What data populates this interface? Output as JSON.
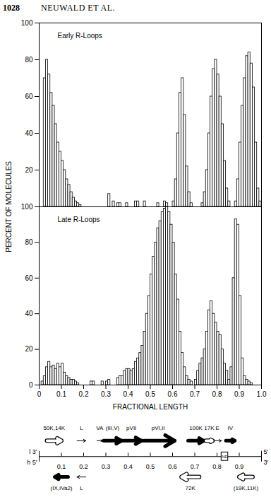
{
  "page": {
    "number": "1028",
    "running_head": "NEUWALD ET AL."
  },
  "chart_data": [
    {
      "type": "histogram",
      "title": "Early R-Loops",
      "ylabel": "PERCENT OF MOLECULES",
      "color": "#000000",
      "bins": [
        0,
        0.01,
        0.02,
        0.03,
        0.04,
        0.05,
        0.06,
        0.07,
        0.08,
        0.09,
        0.1,
        0.11,
        0.12,
        0.13,
        0.14,
        0.15,
        0.16,
        0.17,
        0.18,
        0.19,
        0.2,
        0.21,
        0.22,
        0.23,
        0.24,
        0.25,
        0.26,
        0.27,
        0.28,
        0.29,
        0.3,
        0.31,
        0.32,
        0.33,
        0.34,
        0.35,
        0.36,
        0.37,
        0.38,
        0.39,
        0.4,
        0.41,
        0.42,
        0.43,
        0.44,
        0.45,
        0.46,
        0.47,
        0.48,
        0.49,
        0.5,
        0.51,
        0.52,
        0.53,
        0.54,
        0.55,
        0.56,
        0.57,
        0.58,
        0.59,
        0.6,
        0.61,
        0.62,
        0.63,
        0.64,
        0.65,
        0.66,
        0.67,
        0.68,
        0.69,
        0.7,
        0.71,
        0.72,
        0.73,
        0.74,
        0.75,
        0.76,
        0.77,
        0.78,
        0.79,
        0.8,
        0.81,
        0.82,
        0.83,
        0.84,
        0.85,
        0.86,
        0.87,
        0.88,
        0.89,
        0.9,
        0.91,
        0.92,
        0.93,
        0.94,
        0.95,
        0.96,
        0.97,
        0.98,
        0.99,
        1
      ],
      "counts": [
        0,
        0,
        70,
        80,
        72,
        62,
        55,
        45,
        35,
        30,
        25,
        20,
        15,
        12,
        8,
        5,
        3,
        2,
        1,
        0,
        0,
        0,
        0,
        0,
        0,
        0,
        0,
        0,
        0,
        0,
        0,
        7,
        0,
        3,
        0,
        2,
        2,
        0,
        0,
        2,
        0,
        0,
        0,
        3,
        3,
        0,
        0,
        3,
        0,
        0,
        0,
        0,
        0,
        2,
        0,
        0,
        3,
        2,
        0,
        0,
        3,
        15,
        40,
        62,
        70,
        50,
        22,
        8,
        2,
        0,
        0,
        0,
        0,
        2,
        8,
        20,
        40,
        60,
        75,
        80,
        72,
        60,
        45,
        25,
        10,
        3,
        0,
        0,
        3,
        15,
        35,
        55,
        70,
        82,
        84,
        78,
        65,
        35,
        10,
        3
      ],
      "xlim": [
        0,
        1
      ],
      "ylim": [
        0,
        100
      ],
      "yticks": [
        20,
        40,
        60,
        80,
        100
      ],
      "tick_labels": "y"
    },
    {
      "type": "histogram",
      "title": "Late R-Loops",
      "xlabel": "FRACTIONAL LENGTH",
      "color": "#000000",
      "bins": [
        0,
        0.01,
        0.02,
        0.03,
        0.04,
        0.05,
        0.06,
        0.07,
        0.08,
        0.09,
        0.1,
        0.11,
        0.12,
        0.13,
        0.14,
        0.15,
        0.16,
        0.17,
        0.18,
        0.19,
        0.2,
        0.21,
        0.22,
        0.23,
        0.24,
        0.25,
        0.26,
        0.27,
        0.28,
        0.29,
        0.3,
        0.31,
        0.32,
        0.33,
        0.34,
        0.35,
        0.36,
        0.37,
        0.38,
        0.39,
        0.4,
        0.41,
        0.42,
        0.43,
        0.44,
        0.45,
        0.46,
        0.47,
        0.48,
        0.49,
        0.5,
        0.51,
        0.52,
        0.53,
        0.54,
        0.55,
        0.56,
        0.57,
        0.58,
        0.59,
        0.6,
        0.61,
        0.62,
        0.63,
        0.64,
        0.65,
        0.66,
        0.67,
        0.68,
        0.69,
        0.7,
        0.71,
        0.72,
        0.73,
        0.74,
        0.75,
        0.76,
        0.77,
        0.78,
        0.79,
        0.8,
        0.81,
        0.82,
        0.83,
        0.84,
        0.85,
        0.86,
        0.87,
        0.88,
        0.89,
        0.9,
        0.91,
        0.92,
        0.93,
        0.94,
        0.95,
        0.96,
        0.97,
        0.98,
        0.99,
        1
      ],
      "counts": [
        0,
        2,
        5,
        10,
        13,
        10,
        11,
        9,
        12,
        10,
        12,
        7,
        5,
        4,
        3,
        3,
        2,
        1,
        0,
        0,
        0,
        0,
        0,
        2,
        2,
        0,
        0,
        0,
        2,
        0,
        2,
        3,
        0,
        0,
        0,
        4,
        5,
        5,
        8,
        9,
        9,
        8,
        9,
        13,
        15,
        18,
        22,
        30,
        40,
        50,
        62,
        72,
        80,
        88,
        92,
        97,
        99,
        100,
        97,
        90,
        80,
        62,
        48,
        30,
        18,
        10,
        5,
        3,
        2,
        0,
        3,
        8,
        12,
        15,
        20,
        30,
        42,
        47,
        40,
        35,
        30,
        28,
        20,
        12,
        8,
        3,
        10,
        60,
        93,
        90,
        50,
        15,
        5,
        3,
        2,
        1,
        0,
        0,
        0,
        0
      ],
      "xlim": [
        0,
        1
      ],
      "ylim": [
        0,
        100
      ],
      "xticks": [
        0,
        0.1,
        0.2,
        0.3,
        0.4,
        0.5,
        0.6,
        0.7,
        0.8,
        0.9,
        {
          "value": 1,
          "label": "1.0"
        }
      ],
      "yticks": [
        0,
        20,
        40,
        60,
        80,
        100
      ],
      "tick_labels": true
    }
  ],
  "map": {
    "xlim": [
      0,
      1
    ],
    "ticks": [
      0.1,
      0.2,
      0.3,
      0.4,
      0.5,
      0.6,
      0.7,
      0.8,
      0.9
    ],
    "ends": {
      "left": [
        "l 3'",
        "h 5'"
      ],
      "right": [
        "5'",
        "3'"
      ]
    },
    "box": {
      "label": "ND",
      "start": 0.82,
      "end": 0.85
    },
    "genes": [
      {
        "label": "50K,14K",
        "start": 0.035,
        "end": 0.1,
        "strand": "r",
        "style": "open"
      },
      {
        "label": "L",
        "start": 0.17,
        "end": 0.21,
        "strand": "r",
        "style": "line"
      },
      {
        "label": "VA",
        "start": 0.26,
        "end": 0.285,
        "strand": "r",
        "style": "line"
      },
      {
        "label": "(III,V)",
        "start": 0.29,
        "end": 0.37,
        "strand": "r",
        "style": "filled"
      },
      {
        "label": "pVII",
        "start": 0.37,
        "end": 0.46,
        "strand": "r",
        "style": "filled"
      },
      {
        "label": "pVI,II",
        "start": 0.46,
        "end": 0.61,
        "strand": "r",
        "style": "filled"
      },
      {
        "label": "100K",
        "start": 0.67,
        "end": 0.74,
        "strand": "r",
        "style": "filled"
      },
      {
        "label": "17K",
        "start": 0.75,
        "end": 0.78,
        "strand": "r",
        "style": "open"
      },
      {
        "label": "E",
        "start": 0.785,
        "end": 0.82,
        "strand": "r",
        "style": "line"
      },
      {
        "label": "IV",
        "start": 0.84,
        "end": 0.88,
        "strand": "r",
        "style": "filled"
      },
      {
        "label": "(IX,IVa2)",
        "start": 0.07,
        "end": 0.13,
        "strand": "l",
        "style": "filled"
      },
      {
        "label": "L",
        "start": 0.17,
        "end": 0.21,
        "strand": "l",
        "style": "line"
      },
      {
        "label": "72K",
        "start": 0.64,
        "end": 0.72,
        "strand": "l",
        "style": "open"
      },
      {
        "label": "(19K,11K)",
        "start": 0.9,
        "end": 0.96,
        "strand": "l",
        "style": "open"
      }
    ]
  }
}
